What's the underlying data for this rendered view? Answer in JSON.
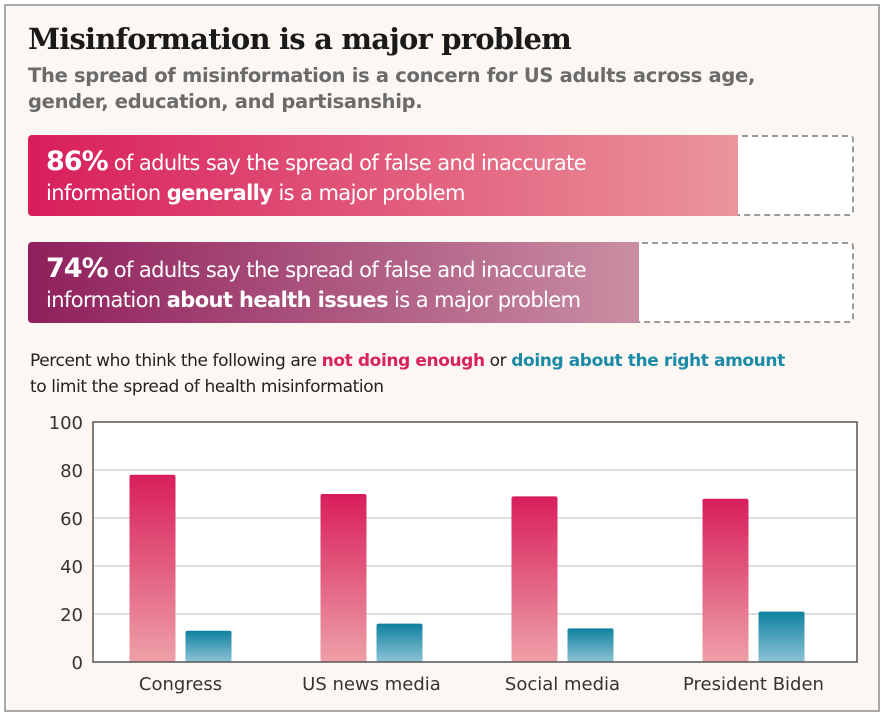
{
  "title": "Misinformation is a major problem",
  "subtitle": "The spread of misinformation is a concern for US adults across age, gender, education, and partisanship.",
  "stats": [
    {
      "value": 86,
      "pct_label": "86%",
      "line1": " of adults say the spread of false and inaccurate",
      "line2_pre": "information ",
      "line2_bold": "generally",
      "line2_post": " is a major problem",
      "color_start": "#d81e5b",
      "color_end": "#eb959b"
    },
    {
      "value": 74,
      "pct_label": "74%",
      "line1": " of adults say the spread of false and inaccurate",
      "line2_pre": "information ",
      "line2_bold": "about health issues",
      "line2_post": " is a major problem",
      "color_start": "#8f1f5c",
      "color_end": "#c98ea3"
    }
  ],
  "legend": {
    "pre": "Percent who think the following are ",
    "red": "not doing enough",
    "mid": " or ",
    "blue": "doing about the right amount",
    "post": "to limit the spread of health misinformation"
  },
  "chart_data": {
    "type": "bar",
    "categories": [
      "Congress",
      "US news media",
      "Social media",
      "President Biden"
    ],
    "series": [
      {
        "name": "not doing enough",
        "values": [
          78,
          70,
          69,
          68
        ],
        "color": "#d81e5b"
      },
      {
        "name": "doing about the right amount",
        "values": [
          13,
          16,
          14,
          21
        ],
        "color": "#1a8aa6"
      }
    ],
    "ylim": [
      0,
      100
    ],
    "yticks": [
      0,
      20,
      40,
      60,
      80,
      100
    ],
    "grid": true
  }
}
